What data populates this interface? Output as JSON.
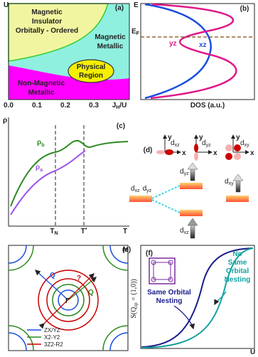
{
  "panel_a": {
    "label": "(a)",
    "y_axis": "U",
    "x_ticks": [
      "0.0",
      "0.1",
      "0.2",
      "0.3"
    ],
    "x_axis": [
      "J",
      "H",
      "/U"
    ],
    "regions": {
      "magnetic_insulator": [
        "Magnetic",
        "Insulator",
        "Orbitally - Ordered"
      ],
      "magnetic_metallic": [
        "Magnetic",
        "Metallic"
      ],
      "physical_region": [
        "Physical",
        "Region"
      ],
      "non_magnetic_metallic": [
        "Non-Magnetic",
        "Metallic"
      ]
    }
  },
  "panel_b": {
    "label": "(b)",
    "y_axis": "E",
    "fermi_level": [
      "E",
      "F"
    ],
    "curves": [
      "yz",
      "xz"
    ],
    "x_axis": "DOS (a.u.)"
  },
  "panel_c": {
    "label": "(c)",
    "y_axis": "ρ",
    "curves": [
      [
        "ρ",
        "b"
      ],
      [
        "ρ",
        "a"
      ]
    ],
    "x_ticks": [
      [
        "T",
        "N"
      ],
      [
        "T",
        "*"
      ]
    ],
    "x_axis": "T"
  },
  "panel_d": {
    "label": "(d)",
    "orbitals": [
      [
        "d",
        "xz"
      ],
      [
        "d",
        "yz"
      ],
      [
        "d",
        "xy"
      ]
    ],
    "axis_x": "x",
    "axis_y": "y",
    "levels": {
      "degenerate": [
        [
          "d",
          "xz"
        ],
        [
          "d",
          "yz"
        ]
      ],
      "upper": [
        "d",
        "yz"
      ],
      "lower": [
        "d",
        "xz"
      ],
      "right": [
        "d",
        "xy"
      ]
    }
  },
  "panel_e": {
    "label": "(e)",
    "corner": "M",
    "center": "Γ",
    "vectors": [
      "Q",
      "Q",
      "?"
    ],
    "legend": [
      "ZX/YZ",
      "X2-Y2",
      "3Z2-R2"
    ]
  },
  "panel_f": {
    "label": "(f)",
    "y_axis": [
      "S(Q",
      "sp",
      " = (1,0))"
    ],
    "x_axis": "U",
    "curves": [
      [
        "Same Orbital",
        "Nesting"
      ],
      [
        "No",
        "Same",
        "Orbital",
        "Nesting"
      ]
    ]
  }
}
